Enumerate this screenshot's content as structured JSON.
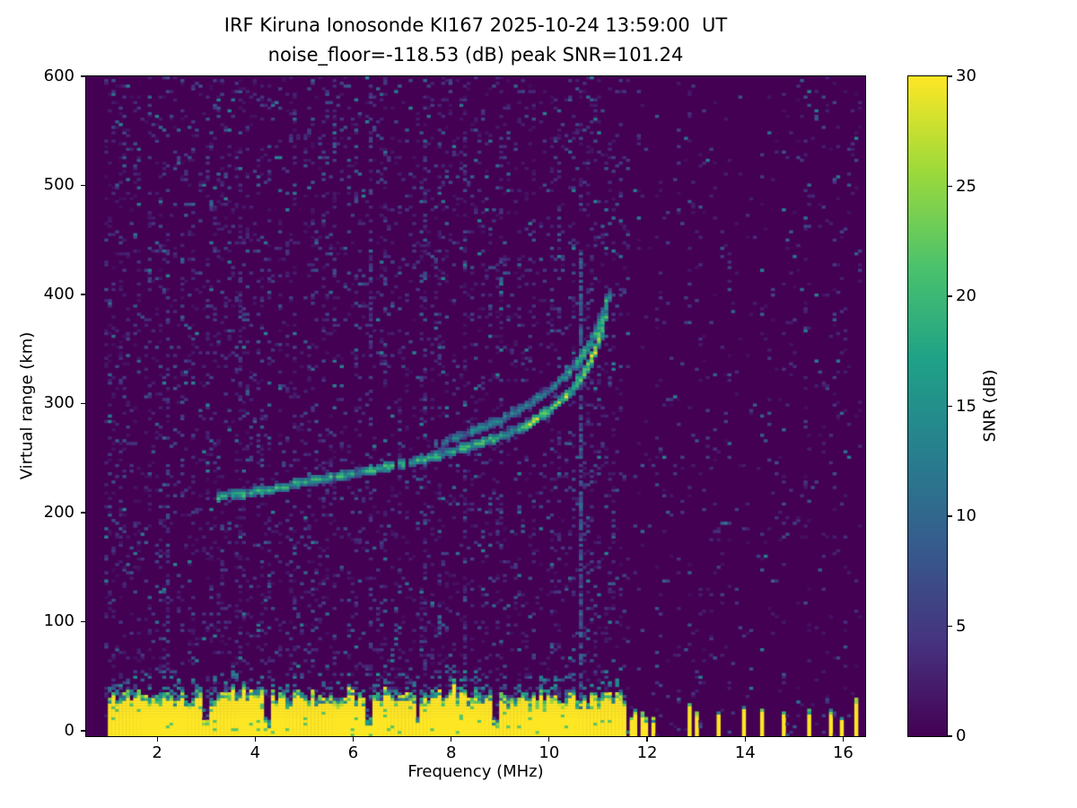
{
  "chart_data": {
    "type": "heatmap",
    "title": "IRF Kiruna Ionosonde KI167 2025-10-24 13:59:00  UT",
    "subtitle": "noise_floor=-118.53 (dB) peak SNR=101.24",
    "xlabel": "Frequency (MHz)",
    "ylabel": "Virtual range (km)",
    "colorbar_label": "SNR (dB)",
    "xlim": [
      0.55,
      16.45
    ],
    "ylim": [
      -5,
      600
    ],
    "xticks": [
      2,
      4,
      6,
      8,
      10,
      12,
      14,
      16
    ],
    "yticks": [
      0,
      100,
      200,
      300,
      400,
      500,
      600
    ],
    "clim": [
      0,
      30
    ],
    "colorbar_ticks": [
      0,
      5,
      10,
      15,
      20,
      25,
      30
    ],
    "colormap": "viridis",
    "colormap_stops": [
      [
        0,
        68,
        1,
        84
      ],
      [
        0.14,
        70,
        50,
        127
      ],
      [
        0.29,
        54,
        92,
        141
      ],
      [
        0.43,
        39,
        127,
        142
      ],
      [
        0.57,
        31,
        161,
        135
      ],
      [
        0.71,
        74,
        194,
        109
      ],
      [
        0.86,
        159,
        218,
        58
      ],
      [
        1,
        253,
        231,
        37
      ]
    ],
    "features": {
      "seed": 16712,
      "grid": {
        "cols": 215,
        "rows": 240
      },
      "data_f_range": [
        0.95,
        16.38
      ],
      "noise": {
        "p_base": 0.13,
        "val_max": 13,
        "rfi_region_factor": 0.35
      },
      "ground_clutter": {
        "f_range": [
          0.98,
          11.57
        ],
        "top_km_base": 26,
        "top_km_jitter": 12,
        "spike_prob": 0.1,
        "spike_extra": 14,
        "notches": [
          2.98,
          4.27,
          6.33,
          7.32,
          8.9
        ],
        "value": 30
      },
      "speckle_above_clutter": {
        "band_km": 24,
        "prob": 0.3,
        "val_range": [
          5,
          15
        ]
      },
      "rfi_stripes": {
        "freqs": [
          11.66,
          11.76,
          11.87,
          11.98,
          12.1,
          12.24,
          12.38,
          12.53,
          12.68,
          12.84,
          13.02,
          13.45,
          13.95,
          14.35,
          14.78,
          15.33,
          15.74,
          15.96,
          16.28
        ],
        "height_range": [
          12,
          28
        ],
        "value": 30
      },
      "vertical_lines": [
        {
          "f": 10.63,
          "h_range": [
            30,
            440
          ],
          "prob": 0.7,
          "val_range": [
            4,
            11
          ]
        },
        {
          "f": 6.33,
          "h_range": [
            0,
            600
          ],
          "prob": 0.18,
          "val_range": [
            3,
            8
          ]
        },
        {
          "f": 2.2,
          "h_range": [
            0,
            600
          ],
          "prob": 0.12,
          "val_range": [
            3,
            7
          ]
        }
      ],
      "echo_traces": [
        {
          "name": "o-mode",
          "points": [
            [
              3.2,
              215
            ],
            [
              3.7,
              217
            ],
            [
              4.2,
              220
            ],
            [
              5,
              228
            ],
            [
              6,
              236
            ],
            [
              7,
              245
            ],
            [
              8,
              256
            ],
            [
              9,
              270
            ],
            [
              9.6,
              282
            ],
            [
              10,
              294
            ],
            [
              10.4,
              310
            ],
            [
              10.7,
              327
            ],
            [
              10.9,
              344
            ],
            [
              11.05,
              363
            ],
            [
              11.13,
              380
            ],
            [
              11.17,
              395
            ]
          ],
          "thickness_km": 6,
          "val_range": [
            10,
            22
          ],
          "bright_f_range": [
            9.6,
            11.05
          ],
          "bright_boost": 8,
          "gap_prob": 0.18
        },
        {
          "name": "x-mode",
          "points": [
            [
              7.7,
              262
            ],
            [
              8.3,
              272
            ],
            [
              8.9,
              283
            ],
            [
              9.4,
              294
            ],
            [
              9.8,
              306
            ],
            [
              10.2,
              320
            ],
            [
              10.55,
              336
            ],
            [
              10.8,
              352
            ],
            [
              11,
              370
            ],
            [
              11.15,
              387
            ],
            [
              11.23,
              402
            ]
          ],
          "thickness_km": 5,
          "val_range": [
            7,
            16
          ],
          "bright_f_range": [
            10.4,
            11.1
          ],
          "bright_boost": 5,
          "gap_prob": 0.3
        }
      ]
    }
  }
}
